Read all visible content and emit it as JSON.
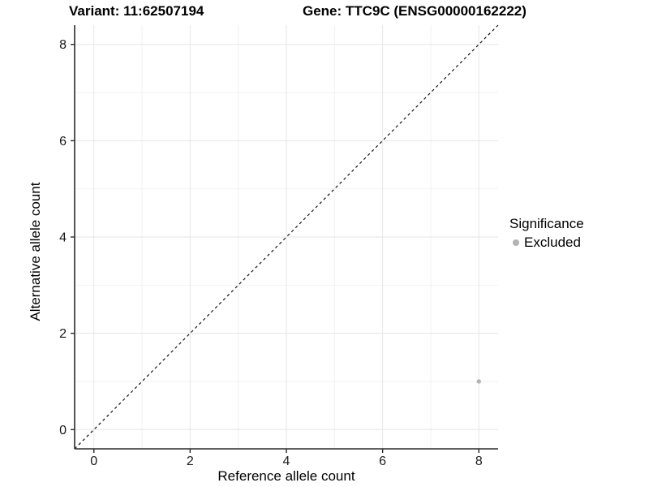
{
  "header": {
    "title_left": "Variant: 11:62507194",
    "title_right": "Gene: TTC9C (ENSG00000162222)"
  },
  "legend": {
    "title": "Significance",
    "items": [
      {
        "label": "Excluded",
        "color": "#b3b3b3"
      }
    ]
  },
  "chart_data": {
    "type": "scatter",
    "xlabel": "Reference allele count",
    "ylabel": "Alternative allele count",
    "xlim": [
      -0.4,
      8.4
    ],
    "ylim": [
      -0.4,
      8.4
    ],
    "xticks": [
      0,
      2,
      4,
      6,
      8
    ],
    "yticks": [
      0,
      2,
      4,
      6,
      8
    ],
    "xticks_minor": [
      1,
      3,
      5,
      7
    ],
    "yticks_minor": [
      1,
      3,
      5,
      7
    ],
    "grid": "major+minor",
    "legend_position": "right",
    "legend_title": "Significance",
    "series": [
      {
        "name": "Excluded",
        "color": "#b3b3b3",
        "points": [
          {
            "x": 8,
            "y": 1
          }
        ]
      }
    ],
    "reference_line": {
      "label": "identity",
      "slope": 1,
      "intercept": 0,
      "style": "dashed",
      "color": "#000000"
    }
  },
  "colors": {
    "grid_major": "#e6e6e6",
    "grid_minor": "#f2f2f2",
    "axis_line": "#2b2b2b",
    "tick_label": "#1a1a1a",
    "status_excluded": "#b3b3b3"
  }
}
